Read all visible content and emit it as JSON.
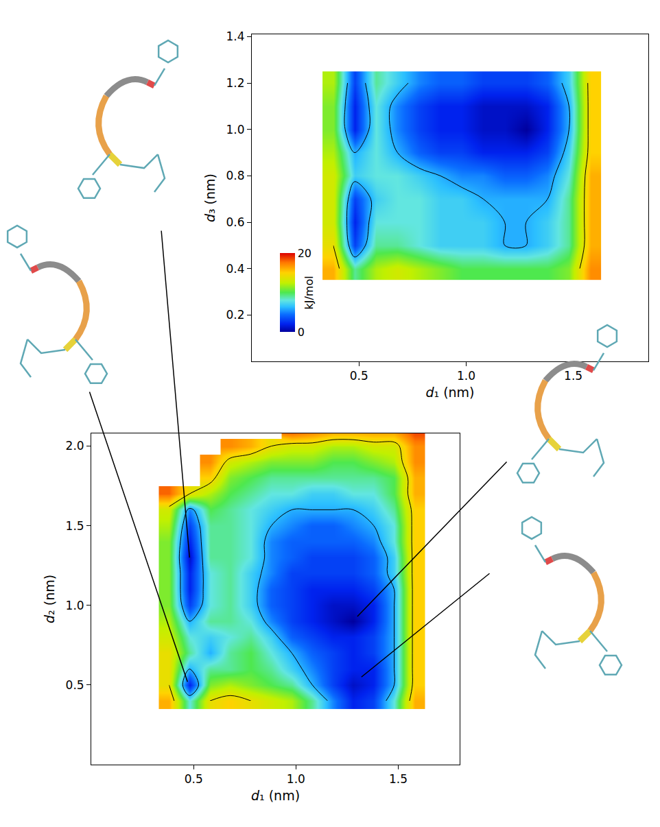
{
  "chart_data": [
    {
      "type": "heatmap",
      "x_label": "d₁ (nm)",
      "y_label": "d₃ (nm)",
      "xlim": [
        0,
        1.85
      ],
      "ylim": [
        0,
        1.41
      ],
      "xticks": [
        0.5,
        {
          "value": 1,
          "label": "1.0"
        },
        1.5
      ],
      "yticks": [
        0.2,
        0.4,
        0.6,
        0.8,
        {
          "value": 1,
          "label": "1.0"
        },
        1.2,
        1.4
      ],
      "colorbar": {
        "range": [
          0,
          20
        ],
        "ticks": [
          0,
          20
        ],
        "title": "kJ/mol"
      },
      "contour_levels": [
        6,
        14
      ],
      "x": [
        0.38,
        0.48,
        0.58,
        0.68,
        0.78,
        0.88,
        0.98,
        1.08,
        1.18,
        1.28,
        1.38,
        1.48,
        1.58
      ],
      "y": [
        0.4,
        0.5,
        0.6,
        0.7,
        0.8,
        0.9,
        1.0,
        1.1,
        1.2
      ],
      "z": [
        [
          16,
          9,
          12,
          13,
          12,
          11,
          10,
          10,
          10,
          10,
          10,
          11,
          17
        ],
        [
          14,
          3,
          9,
          9,
          8,
          7,
          7,
          7,
          6,
          6,
          7,
          9,
          16
        ],
        [
          13,
          2,
          8,
          8,
          8,
          7,
          7,
          7,
          6,
          6,
          7,
          9,
          16
        ],
        [
          13,
          3,
          7,
          8,
          8,
          7,
          7,
          6,
          6,
          6,
          6,
          9,
          16
        ],
        [
          13,
          7,
          8,
          8,
          7,
          6,
          5,
          5,
          4,
          4,
          5,
          8,
          16
        ],
        [
          12,
          6,
          8,
          6,
          4,
          3,
          3,
          2,
          2,
          2,
          3,
          7,
          15
        ],
        [
          11,
          2,
          8,
          5,
          3,
          2,
          2,
          1,
          1,
          0,
          2,
          6,
          15
        ],
        [
          11,
          2,
          8,
          5,
          3,
          2,
          2,
          1,
          1,
          1,
          2,
          6,
          15
        ],
        [
          12,
          3,
          9,
          7,
          5,
          4,
          4,
          3,
          3,
          3,
          4,
          7,
          15
        ]
      ]
    },
    {
      "type": "heatmap",
      "x_label": "d₁ (nm)",
      "y_label": "d₂ (nm)",
      "xlim": [
        0,
        1.8
      ],
      "ylim": [
        0,
        2.08
      ],
      "xticks": [
        0.5,
        {
          "value": 1,
          "label": "1.0"
        },
        1.5
      ],
      "yticks": [
        0.5,
        {
          "value": 1,
          "label": "1.0"
        },
        1.5,
        {
          "value": 2,
          "label": "2.0"
        }
      ],
      "contour_levels": [
        6,
        14
      ],
      "marked_states": [
        {
          "x": 0.48,
          "y": 1.3
        },
        {
          "x": 0.47,
          "y": 0.52
        },
        {
          "x": 1.3,
          "y": 0.93
        },
        {
          "x": 1.32,
          "y": 0.55
        }
      ],
      "x": [
        0.38,
        0.48,
        0.58,
        0.68,
        0.78,
        0.88,
        0.98,
        1.08,
        1.18,
        1.28,
        1.38,
        1.48,
        1.58
      ],
      "y": [
        0.4,
        0.5,
        0.6,
        0.7,
        0.8,
        0.9,
        1.0,
        1.1,
        1.2,
        1.3,
        1.4,
        1.5,
        1.6,
        1.7,
        1.8,
        1.9,
        2.0,
        2.1
      ],
      "z": [
        [
          16,
          8,
          14,
          15,
          14,
          13,
          12,
          9,
          5,
          2,
          3,
          8,
          16
        ],
        [
          14,
          2,
          11,
          12,
          11,
          10,
          9,
          6,
          3,
          1,
          2,
          6,
          15
        ],
        [
          14,
          6,
          9,
          9,
          10,
          9,
          7,
          5,
          3,
          2,
          2,
          6,
          15
        ],
        [
          14,
          9,
          6,
          9,
          10,
          8,
          6,
          4,
          3,
          2,
          3,
          6,
          15
        ],
        [
          13,
          8,
          7,
          8,
          9,
          7,
          4,
          3,
          2,
          2,
          3,
          6,
          15
        ],
        [
          12,
          6,
          9,
          9,
          8,
          5,
          3,
          2,
          1,
          0,
          2,
          6,
          15
        ],
        [
          11,
          3,
          8,
          9,
          7,
          4,
          3,
          2,
          1,
          1,
          2,
          6,
          15
        ],
        [
          11,
          2,
          8,
          9,
          7,
          4,
          3,
          2,
          2,
          2,
          3,
          6,
          15
        ],
        [
          11,
          2,
          8,
          9,
          7,
          5,
          3,
          3,
          3,
          3,
          4,
          7,
          15
        ],
        [
          11,
          1,
          9,
          9,
          8,
          5,
          4,
          3,
          3,
          3,
          4,
          7,
          15
        ],
        [
          11,
          2,
          9,
          9,
          8,
          5,
          4,
          4,
          4,
          4,
          5,
          8,
          15
        ],
        [
          12,
          3,
          9,
          9,
          8,
          6,
          5,
          4,
          4,
          5,
          6,
          8,
          15
        ],
        [
          13,
          5,
          10,
          9,
          8,
          7,
          6,
          6,
          6,
          6,
          7,
          9,
          15
        ],
        [
          18,
          14,
          12,
          10,
          9,
          8,
          8,
          7,
          7,
          8,
          8,
          10,
          16
        ],
        [
          null,
          null,
          15,
          11,
          10,
          9,
          9,
          9,
          9,
          9,
          9,
          10,
          16
        ],
        [
          null,
          null,
          17,
          13,
          12,
          11,
          11,
          11,
          10,
          10,
          11,
          12,
          17
        ],
        [
          null,
          null,
          null,
          17,
          16,
          14,
          13,
          13,
          12,
          12,
          13,
          13,
          17
        ],
        [
          null,
          null,
          null,
          null,
          null,
          null,
          19,
          18,
          17,
          17,
          17,
          17,
          19
        ]
      ]
    }
  ]
}
